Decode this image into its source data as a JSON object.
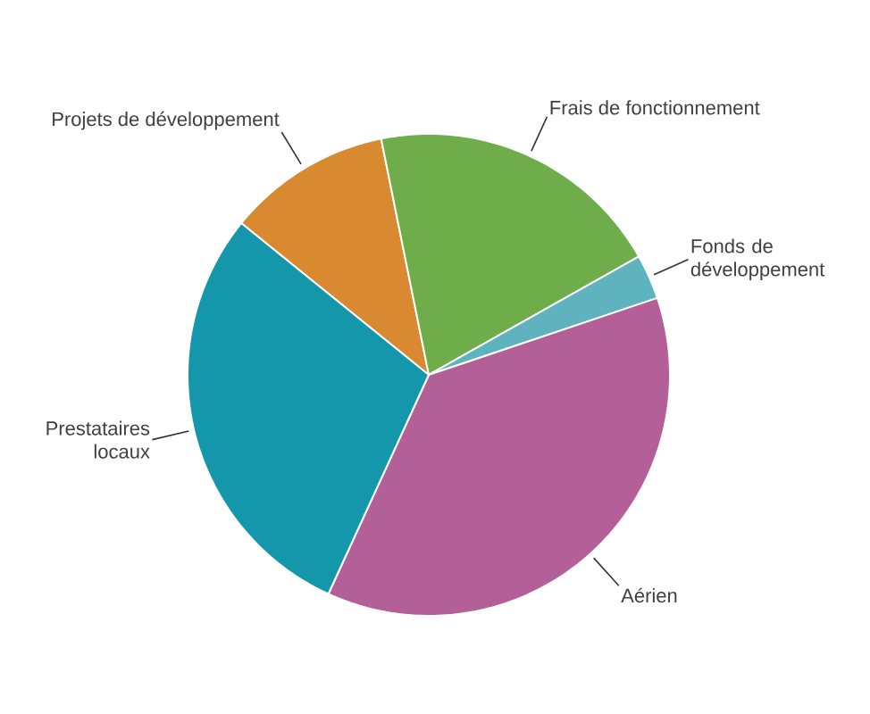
{
  "chart_data": {
    "type": "pie",
    "categories": [
      "Projets de développement",
      "Frais de fonctionnement",
      "Fonds de développement",
      "Aérien",
      "Prestataires locaux"
    ],
    "values": [
      11,
      20,
      3,
      37,
      29
    ],
    "colors": [
      "#d9892f",
      "#6fad4b",
      "#5eb3bf",
      "#b35f98",
      "#1597ab"
    ]
  }
}
